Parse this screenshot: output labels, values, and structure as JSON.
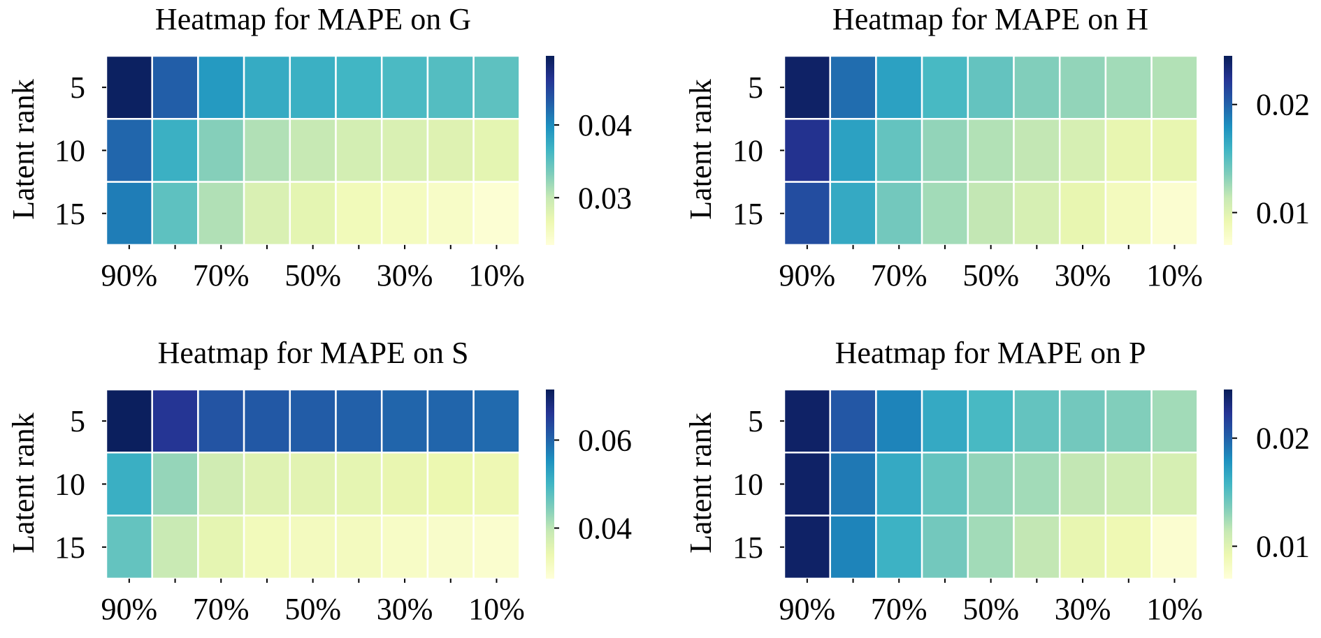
{
  "chart_data": [
    {
      "type": "heatmap",
      "title": "Heatmap for MAPE on G",
      "xlabel": "",
      "ylabel": "Latent rank",
      "x": [
        "90%",
        "80%",
        "70%",
        "60%",
        "50%",
        "40%",
        "30%",
        "20%",
        "10%"
      ],
      "x_tick_labels": [
        "90%",
        "",
        "70%",
        "",
        "50%",
        "",
        "30%",
        "",
        "10%"
      ],
      "y": [
        "5",
        "10",
        "15"
      ],
      "values": [
        [
          0.049,
          0.043,
          0.039,
          0.0375,
          0.037,
          0.0365,
          0.036,
          0.0355,
          0.035
        ],
        [
          0.0425,
          0.037,
          0.033,
          0.031,
          0.03,
          0.029,
          0.0285,
          0.028,
          0.0275
        ],
        [
          0.041,
          0.035,
          0.031,
          0.0285,
          0.0275,
          0.026,
          0.0255,
          0.025,
          0.024
        ]
      ],
      "colorbar": {
        "vmin": 0.0235,
        "vmax": 0.0495,
        "ticks": [
          0.04,
          0.03
        ],
        "tick_labels": [
          "0.04",
          "0.03"
        ]
      },
      "colormap": "YlGnBu",
      "grid": false
    },
    {
      "type": "heatmap",
      "title": "Heatmap for MAPE on H",
      "xlabel": "",
      "ylabel": "Latent rank",
      "x": [
        "90%",
        "80%",
        "70%",
        "60%",
        "50%",
        "40%",
        "30%",
        "20%",
        "10%"
      ],
      "x_tick_labels": [
        "90%",
        "",
        "70%",
        "",
        "50%",
        "",
        "30%",
        "",
        "10%"
      ],
      "y": [
        "5",
        "10",
        "15"
      ],
      "values": [
        [
          0.024,
          0.0195,
          0.017,
          0.0155,
          0.0145,
          0.0135,
          0.013,
          0.0125,
          0.012
        ],
        [
          0.0225,
          0.017,
          0.0145,
          0.013,
          0.012,
          0.0115,
          0.0105,
          0.0095,
          0.0095
        ],
        [
          0.021,
          0.0165,
          0.014,
          0.0125,
          0.0115,
          0.0105,
          0.0095,
          0.0085,
          0.0075
        ]
      ],
      "colorbar": {
        "vmin": 0.007,
        "vmax": 0.0245,
        "ticks": [
          0.02,
          0.01
        ],
        "tick_labels": [
          "0.02",
          "0.01"
        ]
      },
      "colormap": "YlGnBu",
      "grid": false
    },
    {
      "type": "heatmap",
      "title": "Heatmap for MAPE on S",
      "xlabel": "",
      "ylabel": "Latent rank",
      "x": [
        "90%",
        "80%",
        "70%",
        "60%",
        "50%",
        "40%",
        "30%",
        "20%",
        "10%"
      ],
      "x_tick_labels": [
        "90%",
        "",
        "70%",
        "",
        "50%",
        "",
        "30%",
        "",
        "10%"
      ],
      "y": [
        "5",
        "10",
        "15"
      ],
      "values": [
        [
          0.071,
          0.066,
          0.062,
          0.0615,
          0.061,
          0.0605,
          0.06,
          0.06,
          0.0595
        ],
        [
          0.051,
          0.043,
          0.038,
          0.036,
          0.0355,
          0.035,
          0.0345,
          0.034,
          0.0335
        ],
        [
          0.047,
          0.039,
          0.035,
          0.0325,
          0.032,
          0.032,
          0.031,
          0.0305,
          0.03
        ]
      ],
      "colorbar": {
        "vmin": 0.0285,
        "vmax": 0.0715,
        "ticks": [
          0.06,
          0.04
        ],
        "tick_labels": [
          "0.06",
          "0.04"
        ]
      },
      "colormap": "YlGnBu",
      "grid": false
    },
    {
      "type": "heatmap",
      "title": "Heatmap for MAPE on P",
      "xlabel": "",
      "ylabel": "Latent rank",
      "x": [
        "90%",
        "80%",
        "70%",
        "60%",
        "50%",
        "40%",
        "30%",
        "20%",
        "10%"
      ],
      "x_tick_labels": [
        "90%",
        "",
        "70%",
        "",
        "50%",
        "",
        "30%",
        "",
        "10%"
      ],
      "y": [
        "5",
        "10",
        "15"
      ],
      "values": [
        [
          0.024,
          0.0205,
          0.0185,
          0.0165,
          0.0155,
          0.0145,
          0.014,
          0.0135,
          0.0125
        ],
        [
          0.024,
          0.019,
          0.0165,
          0.0145,
          0.013,
          0.0125,
          0.0115,
          0.011,
          0.0105
        ],
        [
          0.024,
          0.0185,
          0.016,
          0.014,
          0.0125,
          0.0115,
          0.0095,
          0.009,
          0.0075
        ]
      ],
      "colorbar": {
        "vmin": 0.007,
        "vmax": 0.0245,
        "ticks": [
          0.02,
          0.01
        ],
        "tick_labels": [
          "0.02",
          "0.01"
        ]
      },
      "colormap": "YlGnBu",
      "grid": false
    }
  ]
}
